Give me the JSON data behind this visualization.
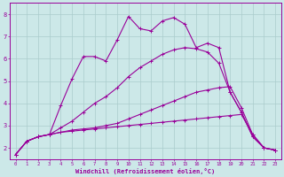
{
  "xlabel": "Windchill (Refroidissement éolien,°C)",
  "bg_color": "#cce8e8",
  "line_color": "#990099",
  "grid_color": "#aacccc",
  "xlim": [
    -0.5,
    23.5
  ],
  "ylim": [
    1.5,
    8.5
  ],
  "xticks": [
    0,
    1,
    2,
    3,
    4,
    5,
    6,
    7,
    8,
    9,
    10,
    11,
    12,
    13,
    14,
    15,
    16,
    17,
    18,
    19,
    20,
    21,
    22,
    23
  ],
  "yticks": [
    2,
    3,
    4,
    5,
    6,
    7,
    8
  ],
  "lines": [
    {
      "x": [
        0,
        1,
        2,
        3,
        4,
        5,
        6,
        7,
        8,
        9,
        10,
        11,
        12,
        13,
        14,
        15,
        16,
        17,
        18,
        19,
        20,
        21,
        22,
        23
      ],
      "y": [
        1.7,
        2.3,
        2.5,
        2.6,
        2.7,
        2.75,
        2.8,
        2.85,
        2.9,
        2.95,
        3.0,
        3.05,
        3.1,
        3.15,
        3.2,
        3.25,
        3.3,
        3.35,
        3.4,
        3.45,
        3.5,
        2.6,
        2.0,
        1.9
      ],
      "marker": true
    },
    {
      "x": [
        0,
        1,
        2,
        3,
        4,
        5,
        6,
        7,
        8,
        9,
        10,
        11,
        12,
        13,
        14,
        15,
        16,
        17,
        18,
        19,
        20,
        21,
        22,
        23
      ],
      "y": [
        1.7,
        2.3,
        2.5,
        2.6,
        2.7,
        2.8,
        2.85,
        2.9,
        3.0,
        3.1,
        3.3,
        3.5,
        3.7,
        3.9,
        4.1,
        4.3,
        4.5,
        4.6,
        4.7,
        4.75,
        3.8,
        2.6,
        2.0,
        1.9
      ],
      "marker": true
    },
    {
      "x": [
        0,
        1,
        2,
        3,
        4,
        5,
        6,
        7,
        8,
        9,
        10,
        11,
        12,
        13,
        14,
        15,
        16,
        17,
        18,
        19,
        20,
        21,
        22,
        23
      ],
      "y": [
        1.7,
        2.3,
        2.5,
        2.6,
        2.9,
        3.2,
        3.6,
        4.0,
        4.3,
        4.7,
        5.2,
        5.6,
        5.9,
        6.2,
        6.4,
        6.5,
        6.45,
        6.3,
        5.8,
        4.5,
        3.6,
        2.5,
        2.0,
        1.9
      ],
      "marker": true
    },
    {
      "x": [
        0,
        1,
        2,
        3,
        4,
        5,
        6,
        7,
        8,
        9,
        10,
        11,
        12,
        13,
        14,
        15,
        16,
        17,
        18,
        19,
        20,
        21,
        22,
        23
      ],
      "y": [
        1.7,
        2.3,
        2.5,
        2.6,
        3.9,
        5.1,
        6.1,
        6.1,
        5.9,
        6.85,
        7.9,
        7.35,
        7.25,
        7.7,
        7.85,
        7.55,
        6.5,
        6.7,
        6.5,
        4.5,
        3.6,
        2.5,
        2.0,
        1.9
      ],
      "marker": true
    }
  ]
}
